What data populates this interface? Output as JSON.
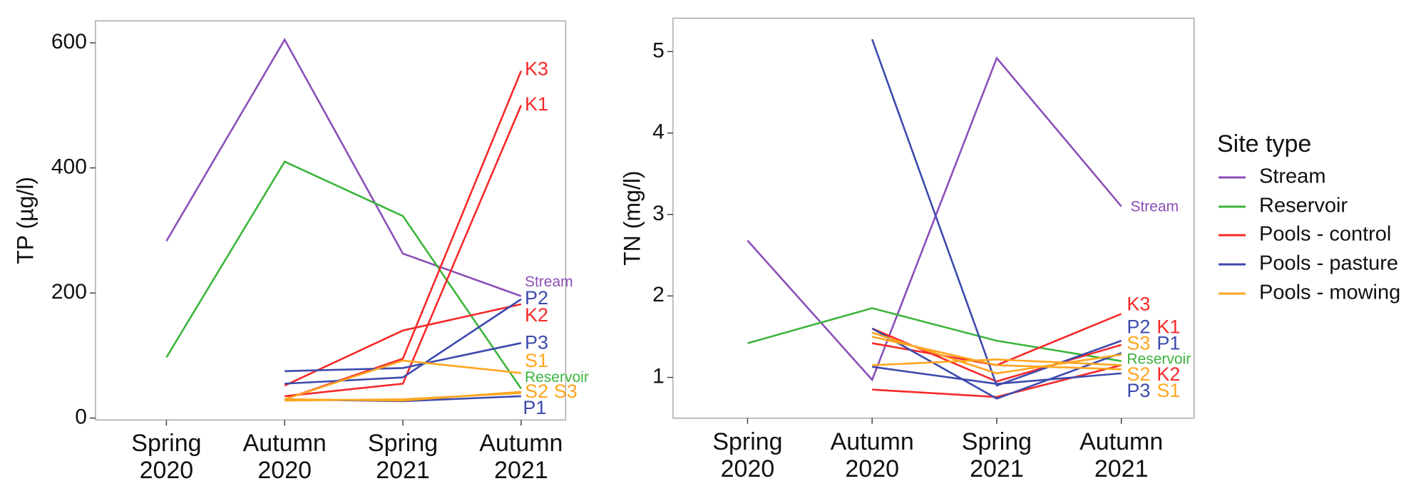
{
  "chart_data": [
    {
      "type": "line",
      "ylabel": "TP (µg/l)",
      "categories": [
        "Spring 2020",
        "Autumn 2020",
        "Spring 2021",
        "Autumn 2021"
      ],
      "ylim": [
        -3,
        635
      ],
      "yticks": [
        0,
        200,
        400,
        600
      ],
      "series": [
        {
          "name": "Stream",
          "color": "#8b4fb8",
          "values": [
            283,
            605,
            263,
            195
          ]
        },
        {
          "name": "Reservoir",
          "color": "#3cb53c",
          "values": [
            97,
            410,
            323,
            47
          ]
        },
        {
          "name": "K3",
          "color": "#f52a2a",
          "values": [
            null,
            30,
            95,
            555
          ]
        },
        {
          "name": "K1",
          "color": "#f52a2a",
          "values": [
            null,
            35,
            55,
            500
          ]
        },
        {
          "name": "K2",
          "color": "#f52a2a",
          "values": [
            null,
            52,
            140,
            182
          ]
        },
        {
          "name": "P2",
          "color": "#3d4aad",
          "values": [
            null,
            55,
            65,
            190
          ]
        },
        {
          "name": "P3",
          "color": "#3d4aad",
          "values": [
            null,
            75,
            80,
            120
          ]
        },
        {
          "name": "P1",
          "color": "#3d4aad",
          "values": [
            null,
            30,
            27,
            35
          ]
        },
        {
          "name": "S1",
          "color": "#ffa620",
          "values": [
            null,
            30,
            92,
            72
          ]
        },
        {
          "name": "S2",
          "color": "#ffa620",
          "values": [
            null,
            30,
            28,
            42
          ]
        },
        {
          "name": "S3",
          "color": "#ffa620",
          "values": [
            null,
            28,
            30,
            40
          ]
        }
      ]
    },
    {
      "type": "line",
      "ylabel": "TN (mg/l)",
      "categories": [
        "Spring 2020",
        "Autumn 2020",
        "Spring 2021",
        "Autumn 2021"
      ],
      "ylim": [
        0.5,
        5.41
      ],
      "yticks": [
        1,
        2,
        3,
        4,
        5
      ],
      "series": [
        {
          "name": "Stream",
          "color": "#8b4fb8",
          "values": [
            2.68,
            0.97,
            4.92,
            3.1
          ]
        },
        {
          "name": "Reservoir",
          "color": "#3cb53c",
          "values": [
            1.42,
            1.85,
            1.45,
            1.2
          ]
        },
        {
          "name": "K3",
          "color": "#f52a2a",
          "values": [
            null,
            1.42,
            1.15,
            1.78
          ]
        },
        {
          "name": "K1",
          "color": "#f52a2a",
          "values": [
            null,
            1.6,
            0.95,
            1.4
          ]
        },
        {
          "name": "K2",
          "color": "#f52a2a",
          "values": [
            null,
            0.85,
            0.76,
            1.15
          ]
        },
        {
          "name": "P2",
          "color": "#3d4aad",
          "values": [
            null,
            5.15,
            0.9,
            1.45
          ]
        },
        {
          "name": "P1",
          "color": "#3d4aad",
          "values": [
            null,
            1.6,
            0.74,
            1.3
          ]
        },
        {
          "name": "P3",
          "color": "#3d4aad",
          "values": [
            null,
            1.13,
            0.92,
            1.05
          ]
        },
        {
          "name": "S1",
          "color": "#ffa620",
          "values": [
            null,
            1.5,
            1.15,
            1.1
          ]
        },
        {
          "name": "S2",
          "color": "#ffa620",
          "values": [
            null,
            1.15,
            1.22,
            1.15
          ]
        },
        {
          "name": "S3",
          "color": "#ffa620",
          "values": [
            null,
            1.55,
            1.05,
            1.28
          ]
        }
      ]
    }
  ],
  "legend": {
    "title": "Site type",
    "items": [
      {
        "name": "Stream",
        "color": "#8b4fb8"
      },
      {
        "name": "Reservoir",
        "color": "#3cb53c"
      },
      {
        "name": "Pools - control",
        "color": "#f52a2a"
      },
      {
        "name": "Pools - pasture",
        "color": "#3d4aad"
      },
      {
        "name": "Pools - mowing",
        "color": "#ffa620"
      }
    ]
  }
}
